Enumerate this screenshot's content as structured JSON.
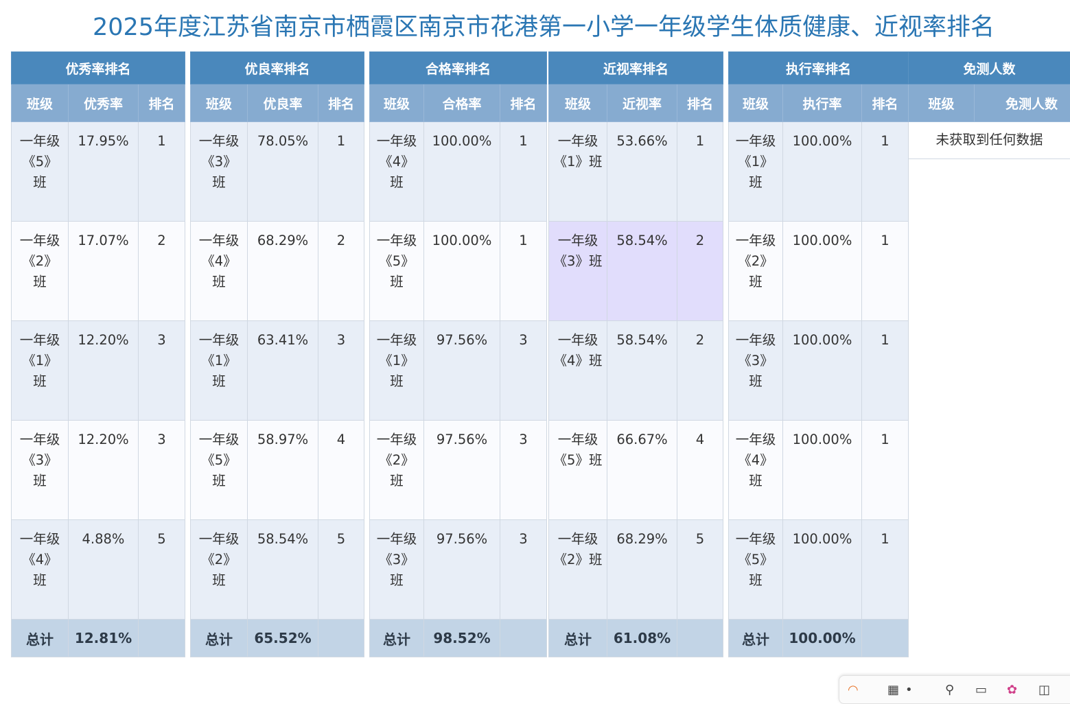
{
  "page": {
    "title": "2025年度江苏省南京市栖霞区南京市花港第一小学一年级学生体质健康、近视率排名"
  },
  "excellent": {
    "title": "优秀率排名",
    "headers": [
      "班级",
      "优秀率",
      "排名"
    ],
    "rows": [
      {
        "cls": "一年级《5》班",
        "rate": "17.95%",
        "rank": "1"
      },
      {
        "cls": "一年级《2》班",
        "rate": "17.07%",
        "rank": "2"
      },
      {
        "cls": "一年级《1》班",
        "rate": "12.20%",
        "rank": "3"
      },
      {
        "cls": "一年级《3》班",
        "rate": "12.20%",
        "rank": "3"
      },
      {
        "cls": "一年级《4》班",
        "rate": "4.88%",
        "rank": "5"
      }
    ],
    "total_label": "总计",
    "total_rate": "12.81%"
  },
  "good": {
    "title": "优良率排名",
    "headers": [
      "班级",
      "优良率",
      "排名"
    ],
    "rows": [
      {
        "cls": "一年级《3》班",
        "rate": "78.05%",
        "rank": "1"
      },
      {
        "cls": "一年级《4》班",
        "rate": "68.29%",
        "rank": "2"
      },
      {
        "cls": "一年级《1》班",
        "rate": "63.41%",
        "rank": "3"
      },
      {
        "cls": "一年级《5》班",
        "rate": "58.97%",
        "rank": "4"
      },
      {
        "cls": "一年级《2》班",
        "rate": "58.54%",
        "rank": "5"
      }
    ],
    "total_label": "总计",
    "total_rate": "65.52%"
  },
  "pass": {
    "title": "合格率排名",
    "headers": [
      "班级",
      "合格率",
      "排名"
    ],
    "rows": [
      {
        "cls": "一年级《4》班",
        "rate": "100.00%",
        "rank": "1"
      },
      {
        "cls": "一年级《5》班",
        "rate": "100.00%",
        "rank": "1"
      },
      {
        "cls": "一年级《1》班",
        "rate": "97.56%",
        "rank": "3"
      },
      {
        "cls": "一年级《2》班",
        "rate": "97.56%",
        "rank": "3"
      },
      {
        "cls": "一年级《3》班",
        "rate": "97.56%",
        "rank": "3"
      }
    ],
    "total_label": "总计",
    "total_rate": "98.52%"
  },
  "myopia": {
    "title": "近视率排名",
    "headers": [
      "班级",
      "近视率",
      "排名"
    ],
    "rows": [
      {
        "cls": "一年级《1》班",
        "rate": "53.66%",
        "rank": "1"
      },
      {
        "cls": "一年级《3》班",
        "rate": "58.54%",
        "rank": "2"
      },
      {
        "cls": "一年级《4》班",
        "rate": "58.54%",
        "rank": "2"
      },
      {
        "cls": "一年级《5》班",
        "rate": "66.67%",
        "rank": "4"
      },
      {
        "cls": "一年级《2》班",
        "rate": "68.29%",
        "rank": "5"
      }
    ],
    "highlight_row": 2,
    "total_label": "总计",
    "total_rate": "61.08%"
  },
  "execution": {
    "title": "执行率排名",
    "headers": [
      "班级",
      "执行率",
      "排名"
    ],
    "rows": [
      {
        "cls": "一年级《1》班",
        "rate": "100.00%",
        "rank": "1"
      },
      {
        "cls": "一年级《2》班",
        "rate": "100.00%",
        "rank": "1"
      },
      {
        "cls": "一年级《3》班",
        "rate": "100.00%",
        "rank": "1"
      },
      {
        "cls": "一年级《4》班",
        "rate": "100.00%",
        "rank": "1"
      },
      {
        "cls": "一年级《5》班",
        "rate": "100.00%",
        "rank": "1"
      }
    ],
    "total_label": "总计",
    "total_rate": "100.00%"
  },
  "exempt": {
    "title": "免测人数",
    "headers": [
      "班级",
      "免测人数"
    ],
    "empty_message": "未获取到任何数据"
  },
  "colors": {
    "title": "#2a76b3",
    "group_header": "#4a88bc",
    "sub_header": "#86abd0",
    "row_odd": "#e8eef7",
    "row_even": "#fafbfe",
    "row_highlight": "#e1ddfc",
    "total_row": "#c2d4e6"
  }
}
